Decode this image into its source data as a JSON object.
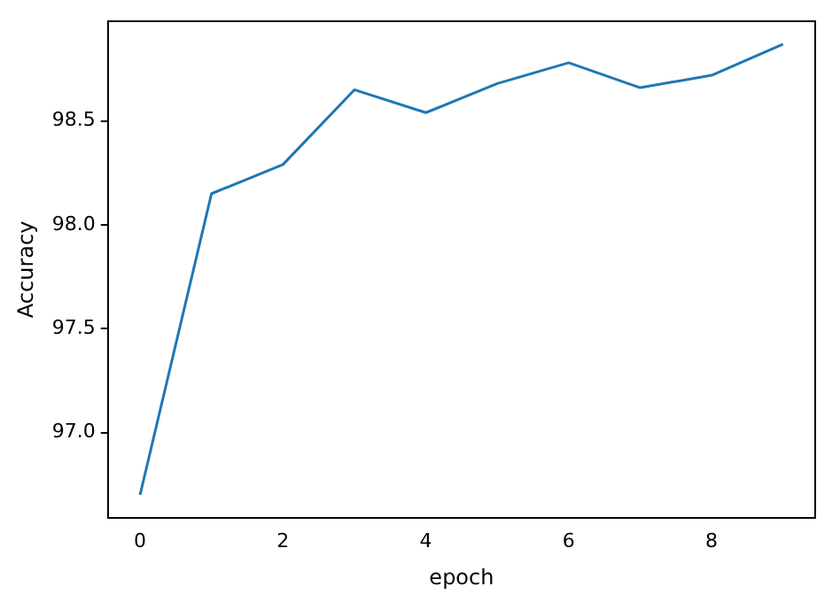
{
  "chart_data": {
    "type": "line",
    "xlabel": "epoch",
    "ylabel": "Accuracy",
    "x": [
      0,
      1,
      2,
      3,
      4,
      5,
      6,
      7,
      8,
      9
    ],
    "series": [
      {
        "color": "#1f77b4",
        "values": [
          96.7,
          98.15,
          98.29,
          98.65,
          98.54,
          98.68,
          98.78,
          98.66,
          98.72,
          98.87
        ]
      }
    ],
    "xlim": [
      -0.45,
      9.45
    ],
    "xticks": [
      0,
      2,
      4,
      6,
      8
    ],
    "ylim": [
      96.59,
      98.98
    ],
    "yticks": [
      {
        "value": 97,
        "label": "97.0"
      },
      {
        "value": 97.5,
        "label": "97.5"
      },
      {
        "value": 98,
        "label": "98.0"
      },
      {
        "value": 98.5,
        "label": "98.5"
      }
    ],
    "grid": false,
    "legend": false,
    "marker": "none",
    "line_style": "solid"
  }
}
